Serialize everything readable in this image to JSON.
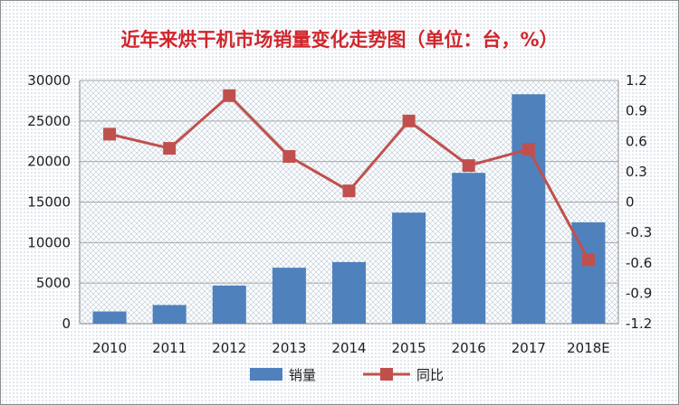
{
  "chart_data": {
    "type": "bar+line",
    "title": "近年来烘干机市场销量变化走势图（单位：台，%）",
    "categories": [
      "2010",
      "2011",
      "2012",
      "2013",
      "2014",
      "2015",
      "2016",
      "2017",
      "2018E"
    ],
    "series": [
      {
        "name": "销量",
        "type": "bar",
        "axis": "left",
        "color": "#4f81bd",
        "values": [
          1500,
          2300,
          4700,
          6900,
          7600,
          13700,
          18600,
          28300,
          12500
        ]
      },
      {
        "name": "同比",
        "type": "line",
        "axis": "right",
        "color": "#c0504d",
        "values": [
          0.67,
          0.53,
          1.05,
          0.45,
          0.11,
          0.8,
          0.36,
          0.52,
          -0.57
        ]
      }
    ],
    "y_left": {
      "min": 0,
      "max": 30000,
      "ticks": [
        "0",
        "5000",
        "10000",
        "15000",
        "20000",
        "25000",
        "30000"
      ]
    },
    "y_right": {
      "min": -1.2,
      "max": 1.2,
      "ticks": [
        "-1.2",
        "-0.9",
        "-0.6",
        "-0.3",
        "0",
        "0.3",
        "0.6",
        "0.9",
        "1.2"
      ]
    },
    "grid": true,
    "legend_position": "bottom"
  }
}
